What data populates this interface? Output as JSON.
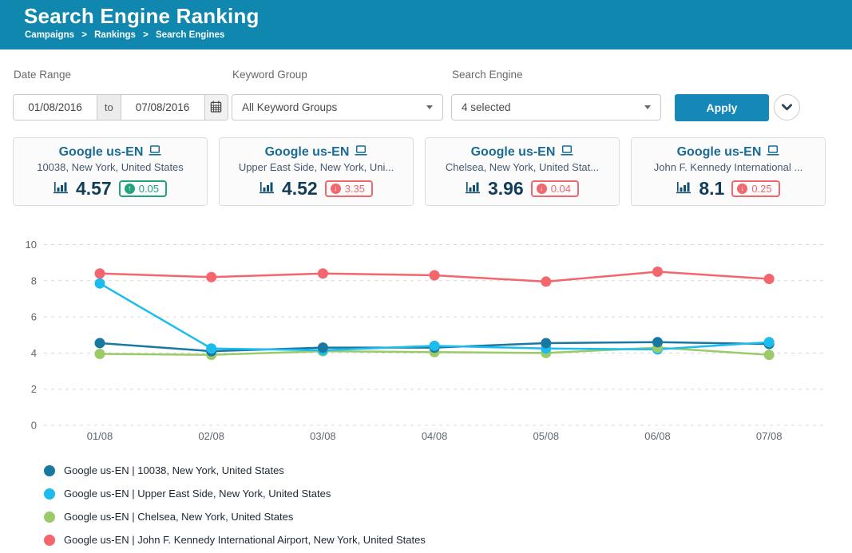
{
  "colors": {
    "header_bg": "#0f87ae",
    "button": "#1588b8",
    "positive": "#1fa47e",
    "negative": "#f2666d"
  },
  "header": {
    "title": "Search Engine Ranking",
    "breadcrumb": [
      "Campaigns",
      "Rankings",
      "Search Engines"
    ],
    "sep": ">"
  },
  "filters": {
    "date_range": {
      "label": "Date Range",
      "from": "01/08/2016",
      "to_word": "to",
      "to": "07/08/2016"
    },
    "keyword_group": {
      "label": "Keyword Group",
      "value": "All Keyword Groups"
    },
    "search_engine": {
      "label": "Search Engine",
      "value": "4 selected"
    },
    "apply_label": "Apply"
  },
  "cards": [
    {
      "title": "Google us-EN",
      "subtitle": "10038, New York, United States",
      "value": "4.57",
      "delta": "0.05",
      "direction": "up"
    },
    {
      "title": "Google us-EN",
      "subtitle": "Upper East Side, New York, Uni...",
      "value": "4.52",
      "delta": "3.35",
      "direction": "down"
    },
    {
      "title": "Google us-EN",
      "subtitle": "Chelsea, New York, United Stat...",
      "value": "3.96",
      "delta": "0.04",
      "direction": "down"
    },
    {
      "title": "Google us-EN",
      "subtitle": "John F. Kennedy International ...",
      "value": "8.1",
      "delta": "0.25",
      "direction": "down"
    }
  ],
  "chart_data": {
    "type": "line",
    "title": "",
    "xlabel": "",
    "ylabel": "",
    "x": [
      "01/08",
      "02/08",
      "03/08",
      "04/08",
      "05/08",
      "06/08",
      "07/08"
    ],
    "ylim": [
      0,
      10
    ],
    "yticks": [
      0,
      2,
      4,
      6,
      8,
      10
    ],
    "grid": "horizontal-dashed",
    "legend_position": "bottom-left",
    "series": [
      {
        "name": "Google us-EN | 10038, New York, United States",
        "color": "#1878a2",
        "values": [
          4.55,
          4.1,
          4.3,
          4.3,
          4.55,
          4.6,
          4.5
        ]
      },
      {
        "name": "Google us-EN | Upper East Side, New York, United States",
        "color": "#1cbdee",
        "values": [
          7.85,
          4.25,
          4.15,
          4.4,
          4.25,
          4.2,
          4.6
        ]
      },
      {
        "name": "Google us-EN | Chelsea, New York, United States",
        "color": "#9acb68",
        "values": [
          3.95,
          3.9,
          4.1,
          4.05,
          4.0,
          4.3,
          3.9
        ]
      },
      {
        "name": "Google us-EN | John F. Kennedy International Airport, New York, United States",
        "color": "#f4666d",
        "values": [
          8.4,
          8.2,
          8.4,
          8.3,
          7.95,
          8.5,
          8.1
        ]
      }
    ]
  }
}
